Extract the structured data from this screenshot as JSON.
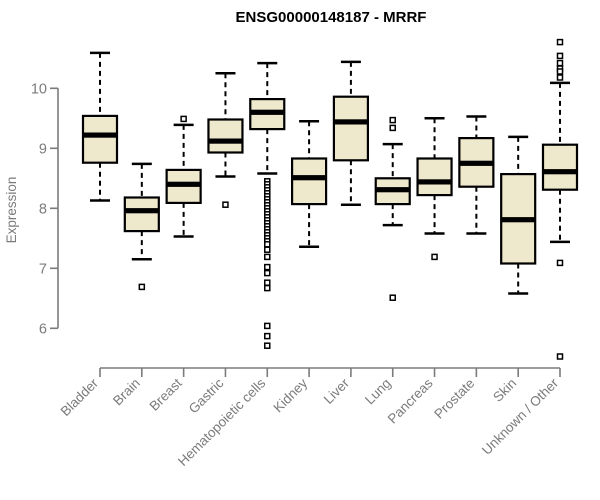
{
  "chart_data": {
    "type": "boxplot",
    "title": "ENSG00000148187 - MRRF",
    "ylabel": "Expression",
    "xlabel": "",
    "yticks": [
      6,
      7,
      8,
      9,
      10
    ],
    "ylim": [
      5.4,
      10.9
    ],
    "grid": false,
    "legend": "none",
    "categories": [
      "Bladder",
      "Brain",
      "Breast",
      "Gastric",
      "Hematopoietic cells",
      "Kidney",
      "Liver",
      "Lung",
      "Pancreas",
      "Prostate",
      "Skin",
      "Unknown / Other"
    ],
    "series": [
      {
        "name": "Bladder",
        "low": 8.13,
        "q1": 8.76,
        "median": 9.22,
        "q3": 9.54,
        "high": 10.59,
        "outliers": []
      },
      {
        "name": "Brain",
        "low": 7.15,
        "q1": 7.62,
        "median": 7.96,
        "q3": 8.18,
        "high": 8.74,
        "outliers": [
          6.69
        ]
      },
      {
        "name": "Breast",
        "low": 7.53,
        "q1": 8.09,
        "median": 8.4,
        "q3": 8.64,
        "high": 9.39,
        "outliers": [
          9.49
        ]
      },
      {
        "name": "Gastric",
        "low": 8.53,
        "q1": 8.93,
        "median": 9.12,
        "q3": 9.48,
        "high": 10.25,
        "outliers": [
          8.06
        ]
      },
      {
        "name": "Hematopoietic cells",
        "low": 8.58,
        "q1": 9.32,
        "median": 9.6,
        "q3": 9.82,
        "high": 10.42,
        "outliers": [
          8.45,
          8.4,
          8.35,
          8.3,
          8.25,
          8.2,
          8.15,
          8.1,
          8.05,
          8.0,
          7.95,
          7.9,
          7.85,
          7.8,
          7.75,
          7.7,
          7.65,
          7.6,
          7.55,
          7.5,
          7.45,
          7.4,
          7.31,
          7.19,
          7.02,
          6.92,
          6.76,
          6.67,
          6.04,
          5.87,
          5.71
        ]
      },
      {
        "name": "Kidney",
        "low": 7.36,
        "q1": 8.07,
        "median": 8.51,
        "q3": 8.83,
        "high": 9.45,
        "outliers": []
      },
      {
        "name": "Liver",
        "low": 8.06,
        "q1": 8.8,
        "median": 9.44,
        "q3": 9.86,
        "high": 10.44,
        "outliers": []
      },
      {
        "name": "Lung",
        "low": 7.72,
        "q1": 8.07,
        "median": 8.31,
        "q3": 8.5,
        "high": 9.07,
        "outliers": [
          9.47,
          9.34,
          6.51
        ]
      },
      {
        "name": "Pancreas",
        "low": 7.58,
        "q1": 8.22,
        "median": 8.44,
        "q3": 8.83,
        "high": 9.5,
        "outliers": [
          7.19
        ]
      },
      {
        "name": "Prostate",
        "low": 7.58,
        "q1": 8.36,
        "median": 8.75,
        "q3": 9.17,
        "high": 9.53,
        "outliers": []
      },
      {
        "name": "Skin",
        "low": 6.58,
        "q1": 7.08,
        "median": 7.81,
        "q3": 8.57,
        "high": 9.19,
        "outliers": []
      },
      {
        "name": "Unknown / Other",
        "low": 7.44,
        "q1": 8.31,
        "median": 8.61,
        "q3": 9.06,
        "high": 10.09,
        "outliers": [
          10.77,
          10.54,
          10.42,
          10.33,
          10.28,
          10.18,
          7.09,
          5.53
        ]
      }
    ],
    "colors": {
      "box_fill": "#EEE8CD",
      "box_border": "#000000",
      "median": "#000000",
      "axis": "#7B7B7B",
      "tick_label": "#7B7B7B",
      "title": "#000000"
    }
  }
}
